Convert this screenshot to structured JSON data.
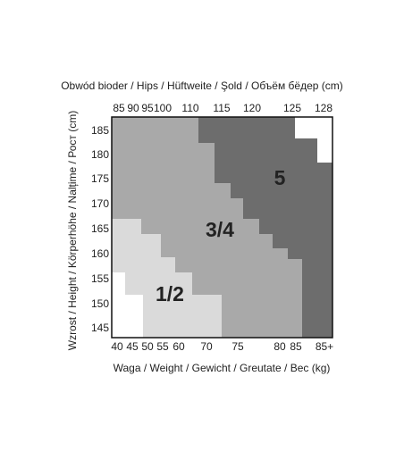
{
  "top_axis": {
    "title": "Obwód bioder / Hips / Hüftweite / Şold / Объём бёдер (cm)",
    "labels": [
      "85",
      "90",
      "95",
      "100",
      "110",
      "115",
      "120",
      "125",
      "128"
    ]
  },
  "left_axis": {
    "title": "Wzrost / Height / Körperhöhe / Nalțime / Рост (cm)",
    "labels": [
      "185",
      "180",
      "175",
      "170",
      "165",
      "160",
      "155",
      "150",
      "145"
    ]
  },
  "bottom_axis": {
    "title": "Waga / Weight / Gewicht / Greutate / Вес (kg)",
    "labels": [
      "40",
      "45",
      "50",
      "55",
      "60",
      "70",
      "75",
      "80",
      "85",
      "85+"
    ]
  },
  "zones": [
    "1/2",
    "3/4",
    "5"
  ]
}
